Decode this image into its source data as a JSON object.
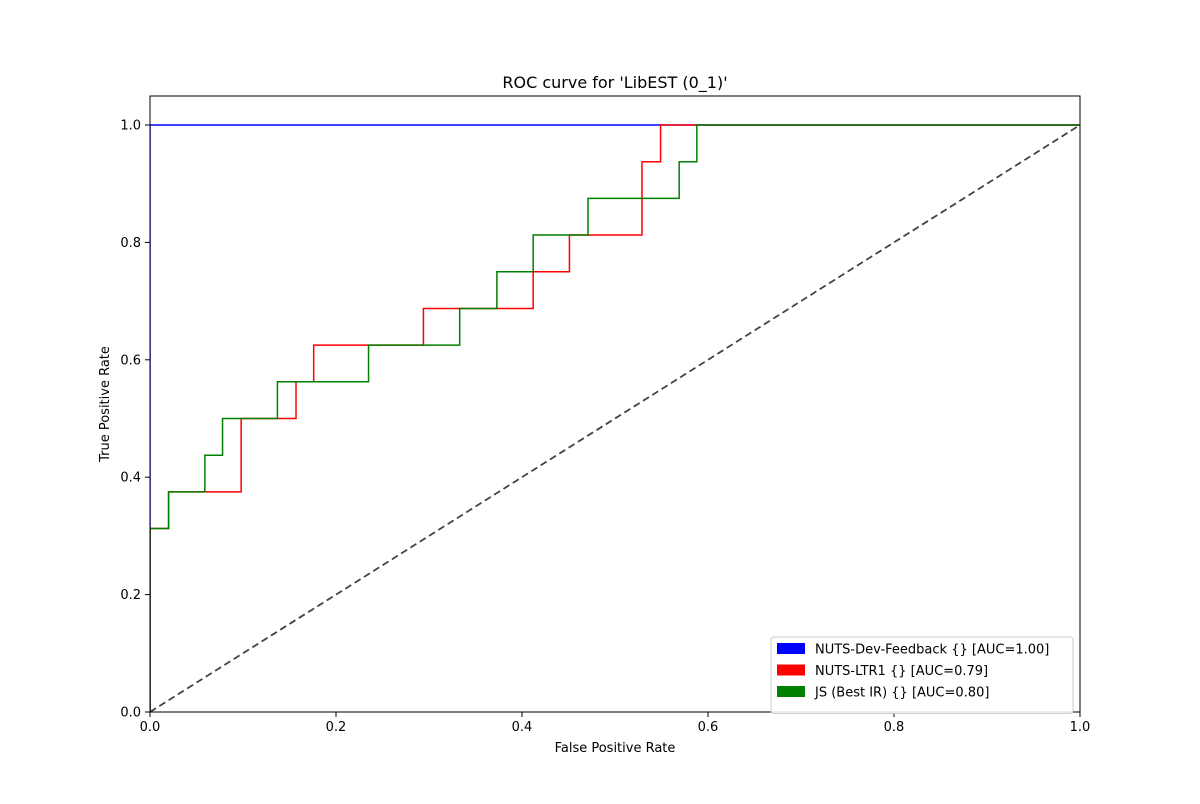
{
  "chart_data": {
    "type": "line",
    "title": "ROC curve for 'LibEST (0_1)'",
    "xlabel": "False Positive Rate",
    "ylabel": "True Positive Rate",
    "xlim": [
      0,
      1
    ],
    "ylim": [
      0,
      1.05
    ],
    "x_ticks": [
      "0.0",
      "0.2",
      "0.4",
      "0.6",
      "0.8",
      "1.0"
    ],
    "y_ticks": [
      "0.0",
      "0.2",
      "0.4",
      "0.6",
      "0.8",
      "1.0"
    ],
    "grid": false,
    "legend_position": "lower-right",
    "series": [
      {
        "name": "NUTS-Dev-Feedback {} [AUC=1.00]",
        "color": "#0000ff",
        "step": true,
        "x": [
          0,
          0,
          1
        ],
        "y": [
          0,
          1.0,
          1.0
        ]
      },
      {
        "name": "NUTS-LTR1 {} [AUC=0.79]",
        "color": "#ff0000",
        "step": true,
        "x": [
          0,
          0,
          0.02,
          0.098,
          0.157,
          0.176,
          0.294,
          0.412,
          0.451,
          0.529,
          0.549,
          0.588,
          1.0
        ],
        "y": [
          0,
          0.3125,
          0.375,
          0.5,
          0.5625,
          0.625,
          0.6875,
          0.75,
          0.8125,
          0.9375,
          1.0,
          1.0,
          1.0
        ]
      },
      {
        "name": "JS (Best IR) {} [AUC=0.80]",
        "color": "#008000",
        "step": true,
        "x": [
          0,
          0,
          0.02,
          0.059,
          0.078,
          0.137,
          0.235,
          0.333,
          0.373,
          0.412,
          0.471,
          0.569,
          0.588,
          1.0
        ],
        "y": [
          0,
          0.3125,
          0.375,
          0.4375,
          0.5,
          0.5625,
          0.625,
          0.6875,
          0.75,
          0.8125,
          0.875,
          0.9375,
          1.0,
          1.0
        ]
      },
      {
        "name": "",
        "color": "#444444",
        "dashed": true,
        "x": [
          0,
          1
        ],
        "y": [
          0,
          1
        ]
      }
    ]
  }
}
